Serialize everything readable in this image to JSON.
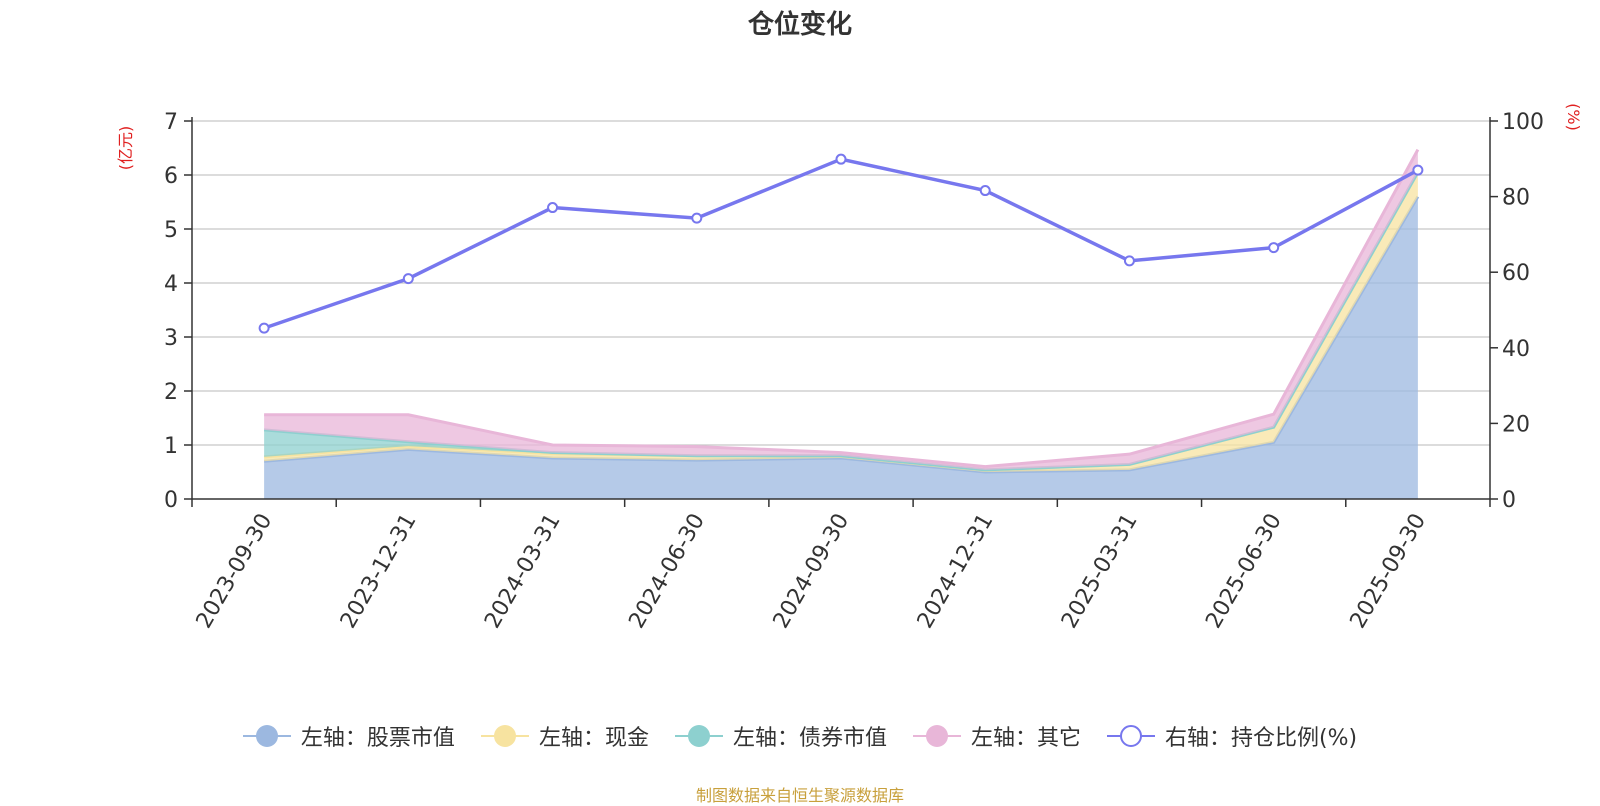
{
  "chart_data": {
    "type": "area",
    "title": "仓位变化",
    "left_axis_unit": "(亿元)",
    "right_axis_unit": "(%)",
    "categories": [
      "2023-09-30",
      "2023-12-31",
      "2024-03-31",
      "2024-06-30",
      "2024-09-30",
      "2024-12-31",
      "2025-03-31",
      "2025-06-30",
      "2025-09-30"
    ],
    "left_ylim": [
      0,
      7
    ],
    "left_ticks": [
      "0",
      "1",
      "2",
      "3",
      "4",
      "5",
      "6",
      "7"
    ],
    "right_ylim": [
      0,
      100
    ],
    "right_ticks": [
      "0",
      "20",
      "40",
      "60",
      "80",
      "100"
    ],
    "grid": true,
    "legend_position": "bottom",
    "series": [
      {
        "name": "左轴：股票市值",
        "axis": "left",
        "stack": true,
        "color": "#9cb8e0",
        "values": [
          0.7,
          0.92,
          0.76,
          0.72,
          0.76,
          0.5,
          0.54,
          1.05,
          5.6
        ]
      },
      {
        "name": "左轴：现金",
        "axis": "left",
        "stack": true,
        "color": "#f7e3a0",
        "values": [
          0.08,
          0.06,
          0.08,
          0.08,
          0.04,
          0.04,
          0.1,
          0.28,
          0.45
        ]
      },
      {
        "name": "左轴：债券市值",
        "axis": "left",
        "stack": true,
        "color": "#8dd0cf",
        "values": [
          0.5,
          0.08,
          0.02,
          0,
          0,
          0,
          0,
          0,
          0
        ]
      },
      {
        "name": "左轴：其它",
        "axis": "left",
        "stack": true,
        "color": "#e8b6d8",
        "values": [
          0.28,
          0.5,
          0.14,
          0.17,
          0.06,
          0.06,
          0.19,
          0.24,
          0.42
        ]
      },
      {
        "name": "右轴：持仓比例(%)",
        "axis": "right",
        "type": "line",
        "color": "#7777ee",
        "values": [
          45.2,
          58.3,
          77.1,
          74.3,
          89.9,
          81.6,
          63.0,
          66.5,
          87.0
        ]
      }
    ]
  },
  "source_text": "制图数据来自恒生聚源数据库"
}
